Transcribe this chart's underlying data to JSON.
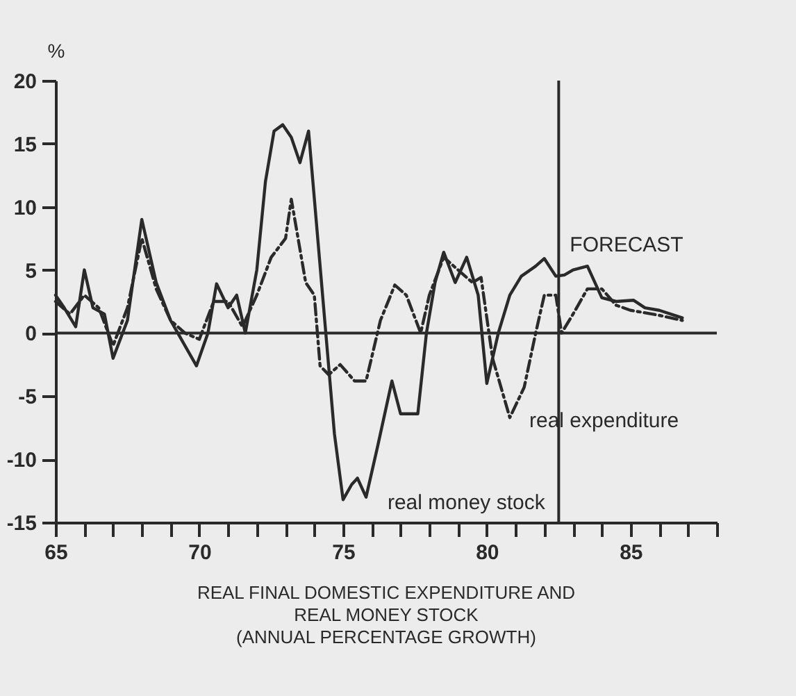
{
  "chart_data": {
    "type": "line",
    "title": "REAL FINAL DOMESTIC EXPENDITURE AND REAL MONEY STOCK",
    "subtitle": "(ANNUAL PERCENTAGE GROWTH)",
    "ylabel": "%",
    "xlim": [
      65,
      88
    ],
    "ylim": [
      -15,
      20
    ],
    "xticks": [
      65,
      {
        "value": 66,
        "label": null
      },
      {
        "value": 67,
        "label": null
      },
      {
        "value": 68,
        "label": null
      },
      {
        "value": 69,
        "label": null
      },
      70,
      {
        "value": 71,
        "label": null
      },
      {
        "value": 72,
        "label": null
      },
      {
        "value": 73,
        "label": null
      },
      {
        "value": 74,
        "label": null
      },
      75,
      {
        "value": 76,
        "label": null
      },
      {
        "value": 77,
        "label": null
      },
      {
        "value": 78,
        "label": null
      },
      {
        "value": 79,
        "label": null
      },
      80,
      {
        "value": 81,
        "label": null
      },
      {
        "value": 82,
        "label": null
      },
      {
        "value": 83,
        "label": null
      },
      {
        "value": 84,
        "label": null
      },
      85,
      {
        "value": 86,
        "label": null
      },
      {
        "value": 87,
        "label": null
      },
      {
        "value": 88,
        "label": null
      }
    ],
    "yticks": [
      -15,
      -10,
      -5,
      0,
      5,
      10,
      15,
      20
    ],
    "grid": false,
    "legend": false,
    "marker": "none",
    "ref_lines": [
      {
        "axis": "y",
        "value": 0,
        "label": null
      },
      {
        "axis": "x",
        "value": 82.5,
        "label": "FORECAST"
      }
    ],
    "series": [
      {
        "name": "real money stock",
        "color": "#2a2a2a",
        "line_style": "solid",
        "x": [
          65,
          65.3,
          65.7,
          66,
          66.3,
          66.7,
          67,
          67.5,
          68,
          68.5,
          69,
          69.5,
          69.9,
          70.3,
          70.6,
          71,
          71.3,
          71.6,
          72,
          72.3,
          72.6,
          72.9,
          73.2,
          73.5,
          73.8,
          74.1,
          74.4,
          74.7,
          75,
          75.3,
          75.5,
          75.8,
          76.2,
          76.7,
          77,
          77.6,
          77.9,
          78.2,
          78.5,
          78.9,
          79.3,
          79.7,
          80,
          80.4,
          80.8,
          81.2,
          81.7,
          82,
          82.4,
          82.7,
          83,
          83.5,
          84,
          84.5,
          85.1,
          85.5,
          86,
          86.8
        ],
        "values": [
          3,
          2,
          0.5,
          5,
          2,
          1.5,
          -2,
          1,
          9,
          4,
          1,
          -1,
          -2.6,
          0,
          3.9,
          2,
          3,
          0,
          5,
          12,
          16,
          16.5,
          15.5,
          13.5,
          16,
          8,
          0,
          -8,
          -13.2,
          -12,
          -11.5,
          -13,
          -9,
          -3.8,
          -6.4,
          -6.4,
          0,
          4,
          6.4,
          4,
          6,
          3,
          -4,
          0,
          3,
          4.5,
          5.3,
          5.9,
          4.5,
          4.6,
          5,
          5.3,
          2.8,
          2.5,
          2.6,
          2,
          1.8,
          1.2
        ]
      },
      {
        "name": "real expenditure",
        "color": "#2a2a2a",
        "line_style": "dashed",
        "x": [
          65,
          65.5,
          66,
          66.5,
          67,
          67.5,
          68,
          68.5,
          69,
          69.5,
          70,
          70.5,
          71,
          71.5,
          72,
          72.5,
          73,
          73.2,
          73.7,
          74,
          74.2,
          74.5,
          74.9,
          75.4,
          75.8,
          76.3,
          76.8,
          77.2,
          77.7,
          78,
          78.5,
          79,
          79.5,
          79.8,
          80.2,
          80.8,
          81.3,
          81.7,
          82,
          82.4,
          82.6,
          83,
          83.5,
          84,
          84.5,
          85,
          86,
          86.8
        ],
        "values": [
          2.5,
          1.5,
          3,
          2,
          -1,
          2,
          7.5,
          3.5,
          1,
          0,
          -0.5,
          2.5,
          2.5,
          0.5,
          3,
          6,
          7.5,
          10.6,
          4,
          3,
          -2.6,
          -3.3,
          -2.5,
          -3.8,
          -3.8,
          1,
          3.8,
          3,
          0,
          3,
          6,
          5,
          4,
          4.4,
          -2,
          -6.7,
          -4.3,
          0,
          3,
          3,
          0,
          1.5,
          3.5,
          3.5,
          2.2,
          1.8,
          1.4,
          1
        ]
      }
    ]
  }
}
